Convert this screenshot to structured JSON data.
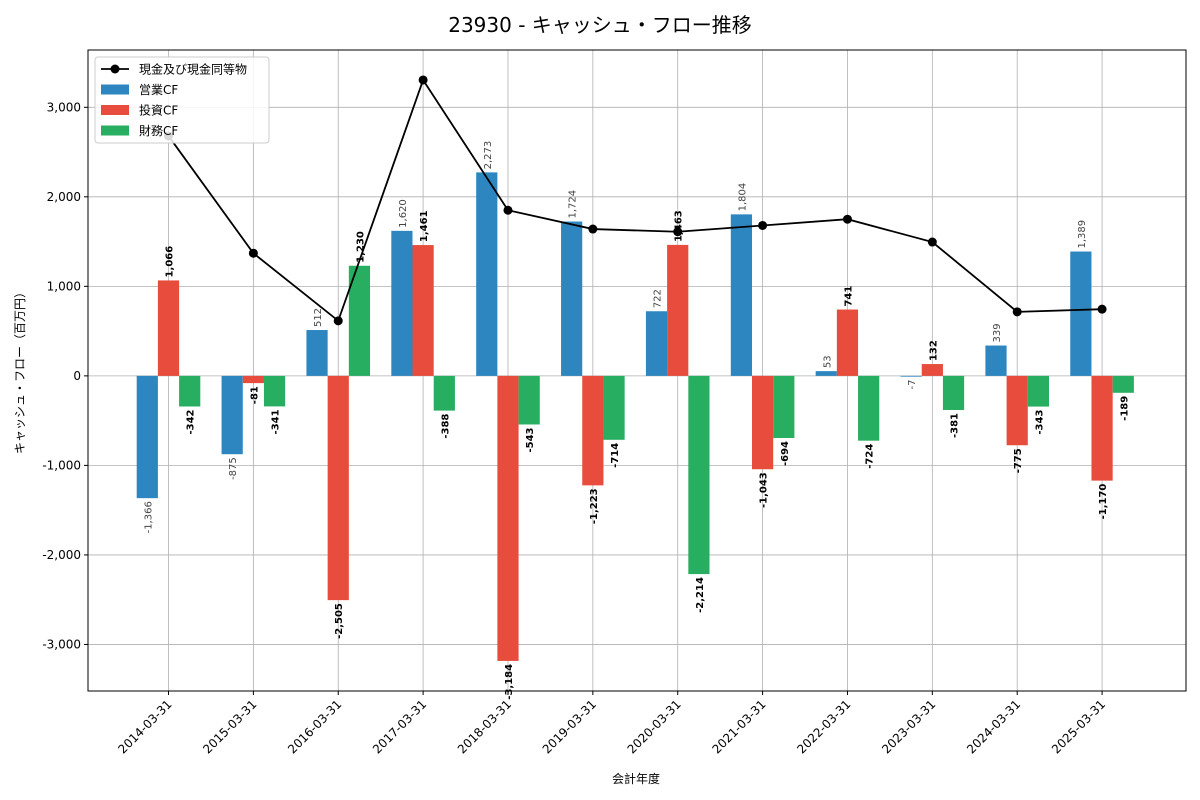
{
  "chart_data": {
    "type": "bar",
    "title": "23930 - キャッシュ・フロー推移",
    "xlabel": "会計年度",
    "ylabel": "キャッシュ・フロー（百万円）",
    "categories": [
      "2014-03-31",
      "2015-03-31",
      "2016-03-31",
      "2017-03-31",
      "2018-03-31",
      "2019-03-31",
      "2020-03-31",
      "2021-03-31",
      "2022-03-31",
      "2023-03-31",
      "2024-03-31",
      "2025-03-31"
    ],
    "series": [
      {
        "name": "営業CF",
        "kind": "bar",
        "color": "#2e86c1",
        "values": [
          -1366,
          -875,
          512,
          1620,
          2273,
          1724,
          722,
          1804,
          53,
          -7,
          339,
          1389
        ],
        "labels": [
          "-1,366",
          "-875",
          "512",
          "1,620",
          "2,273",
          "1,724",
          "722",
          "1,804",
          "53",
          "-7",
          "339",
          "1,389"
        ]
      },
      {
        "name": "投資CF",
        "kind": "bar",
        "color": "#e74c3c",
        "values": [
          1066,
          -81,
          -2505,
          1461,
          -3184,
          -1223,
          1463,
          -1043,
          741,
          132,
          -775,
          -1170
        ],
        "labels": [
          "1,066",
          "-81",
          "-2,505",
          "1,461",
          "-3,184",
          "-1,223",
          "1,463",
          "-1,043",
          "741",
          "132",
          "-775",
          "-1,170"
        ]
      },
      {
        "name": "財務CF",
        "kind": "bar",
        "color": "#27ae60",
        "values": [
          -342,
          -341,
          1230,
          -388,
          -543,
          -714,
          -2214,
          -694,
          -724,
          -381,
          -343,
          -189
        ],
        "labels": [
          "-342",
          "-341",
          "1,230",
          "-388",
          "-543",
          "-714",
          "-2,214",
          "-694",
          "-724",
          "-381",
          "-343",
          "-189"
        ]
      },
      {
        "name": "現金及び現金同等物",
        "kind": "line",
        "color": "#000000",
        "values": [
          2680,
          1370,
          615,
          3305,
          1850,
          1640,
          1610,
          1680,
          1750,
          1495,
          715,
          745
        ]
      }
    ],
    "yticks": [
      -3000,
      -2000,
      -1000,
      0,
      1000,
      2000,
      3000
    ],
    "ytick_labels": [
      "-3,000",
      "-2,000",
      "-1,000",
      "0",
      "1,000",
      "2,000",
      "3,000"
    ],
    "ylim": [
      -3520,
      3640
    ],
    "grid": true,
    "legend": "top-left"
  }
}
